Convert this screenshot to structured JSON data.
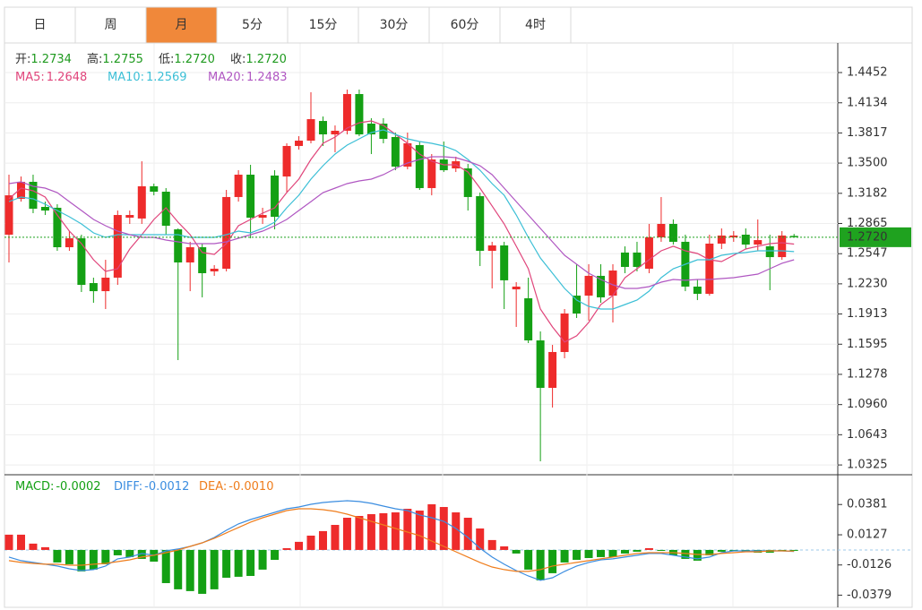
{
  "tabs": [
    "日",
    "周",
    "月",
    "5分",
    "15分",
    "30分",
    "60分",
    "4时"
  ],
  "active_tab": 2,
  "chart_data": [
    {
      "type": "candlestick",
      "info": [
        {
          "label": "开:",
          "value": "1.2734"
        },
        {
          "label": "高:",
          "value": "1.2755"
        },
        {
          "label": "低:",
          "value": "1.2720"
        },
        {
          "label": "收:",
          "value": "1.2720"
        }
      ],
      "up_color": "#ee2b2b",
      "down_color": "#14a014",
      "open": [
        1.2747,
        1.3124,
        1.3303,
        1.3039,
        1.303,
        1.2615,
        1.2709,
        1.2238,
        1.2153,
        1.2295,
        1.2926,
        1.2917,
        1.3256,
        1.3199,
        1.2803,
        1.2455,
        1.2615,
        1.2361,
        1.2389,
        1.3143,
        1.3378,
        1.2926,
        1.3369,
        1.3359,
        1.368,
        1.3736,
        1.3943,
        1.3802,
        1.384,
        1.4226,
        1.3915,
        1.3915,
        1.3774,
        1.3463,
        1.3689,
        1.3237,
        1.3538,
        1.3444,
        1.3444,
        1.3152,
        1.2577,
        1.2634,
        1.2172,
        1.2078,
        1.1635,
        1.1136,
        1.1513,
        1.2106,
        1.2106,
        1.2314,
        1.2106,
        1.2559,
        1.2559,
        1.2389,
        1.2719,
        1.286,
        1.2672,
        1.2201,
        1.2125,
        1.2653,
        1.2719,
        1.2747,
        1.2643,
        1.2625,
        1.2511,
        1.2734
      ],
      "high": [
        1.3378,
        1.3359,
        1.3378,
        1.3095,
        1.3067,
        1.2785,
        1.2747,
        1.2295,
        1.2483,
        1.3001,
        1.3001,
        1.3519,
        1.3284,
        1.3237,
        1.2813,
        1.2672,
        1.2653,
        1.2427,
        1.3218,
        1.3425,
        1.3482,
        1.303,
        1.3425,
        1.3708,
        1.3783,
        1.4245,
        1.399,
        1.3896,
        1.4273,
        1.4273,
        1.3972,
        1.3972,
        1.3821,
        1.3821,
        1.3727,
        1.3595,
        1.3727,
        1.3567,
        1.3491,
        1.319,
        1.2672,
        1.2672,
        1.2248,
        1.2295,
        1.173,
        1.1588,
        1.1965,
        1.2436,
        1.2436,
        1.2436,
        1.2436,
        1.2624,
        1.2672,
        1.286,
        1.3143,
        1.2907,
        1.2747,
        1.2276,
        1.2747,
        1.2813,
        1.2785,
        1.2813,
        1.2907,
        1.2747,
        1.2785,
        1.2755
      ],
      "low": [
        1.2455,
        1.3095,
        1.2973,
        1.2954,
        1.2577,
        1.2577,
        1.2144,
        1.2031,
        1.1965,
        1.2219,
        1.286,
        1.286,
        1.3161,
        1.2747,
        1.1428,
        1.2153,
        1.2088,
        1.2314,
        1.2361,
        1.3095,
        1.2709,
        1.286,
        1.2803,
        1.319,
        1.3642,
        1.3708,
        1.368,
        1.3614,
        1.3802,
        1.3783,
        1.3595,
        1.3708,
        1.3425,
        1.3435,
        1.3218,
        1.3161,
        1.3406,
        1.3406,
        1.3001,
        1.2417,
        1.2182,
        1.1965,
        1.1777,
        1.1607,
        1.0364,
        1.0929,
        1.1447,
        1.1871,
        1.1843,
        1.2031,
        1.1824,
        1.2342,
        1.2361,
        1.2342,
        1.2672,
        1.2643,
        1.2153,
        1.2059,
        1.2106,
        1.2596,
        1.2672,
        1.2596,
        1.2577,
        1.2163,
        1.2483,
        1.272
      ],
      "close": [
        1.3161,
        1.3303,
        1.302,
        1.3001,
        1.2615,
        1.2709,
        1.2219,
        1.2153,
        1.2295,
        1.2954,
        1.2954,
        1.3256,
        1.3199,
        1.2841,
        1.2455,
        1.2615,
        1.2342,
        1.2389,
        1.3143,
        1.3378,
        1.2926,
        1.2954,
        1.2935,
        1.368,
        1.3736,
        1.3962,
        1.3802,
        1.384,
        1.4226,
        1.3802,
        1.3802,
        1.3755,
        1.3463,
        1.3708,
        1.3237,
        1.3538,
        1.3425,
        1.3519,
        1.3143,
        1.2577,
        1.2634,
        1.2267,
        1.2201,
        1.1635,
        1.1136,
        1.1513,
        1.1918,
        1.1918,
        1.2314,
        1.2088,
        1.237,
        1.2408,
        1.2408,
        1.2719,
        1.286,
        1.2672,
        1.2201,
        1.2125,
        1.2653,
        1.2738,
        1.2738,
        1.2643,
        1.269,
        1.2511,
        1.2738,
        1.272
      ],
      "series": [
        {
          "name": "MA5:",
          "value_label": "1.2648",
          "color": "#e0457b",
          "values": [
            1.3124,
            1.3237,
            1.3209,
            1.3143,
            1.2954,
            1.2785,
            1.2653,
            1.2483,
            1.2361,
            1.2389,
            1.2596,
            1.2747,
            1.2907,
            1.303,
            1.2879,
            1.2747,
            1.2559,
            1.254,
            1.2653,
            1.2841,
            1.2907,
            1.2973,
            1.303,
            1.319,
            1.3331,
            1.3538,
            1.3708,
            1.3774,
            1.3868,
            1.3924,
            1.3943,
            1.3896,
            1.3802,
            1.3708,
            1.3595,
            1.3519,
            1.3482,
            1.3482,
            1.3406,
            1.3237,
            1.3049,
            1.286,
            1.2625,
            1.2389,
            1.1965,
            1.1777,
            1.1617,
            1.1683,
            1.1824,
            1.2012,
            1.2106,
            1.2295,
            1.2389,
            1.2483,
            1.2577,
            1.2625,
            1.2577,
            1.2549,
            1.2483,
            1.2464,
            1.253,
            1.2596,
            1.2625,
            1.2653,
            1.2662,
            1.2648
          ]
        },
        {
          "name": "MA10:",
          "value_label": "1.2569",
          "color": "#3cbfd6",
          "values": [
            1.3095,
            1.3143,
            1.3124,
            1.3067,
            1.3001,
            1.2935,
            1.286,
            1.2766,
            1.2719,
            1.2747,
            1.2747,
            1.2747,
            1.2747,
            1.2747,
            1.2747,
            1.2719,
            1.2719,
            1.2719,
            1.2747,
            1.2785,
            1.2766,
            1.2813,
            1.2879,
            1.303,
            1.3161,
            1.3331,
            1.3472,
            1.3595,
            1.3689,
            1.3755,
            1.3821,
            1.3849,
            1.3802,
            1.3755,
            1.3727,
            1.3708,
            1.368,
            1.3632,
            1.3538,
            1.3425,
            1.3284,
            1.3161,
            1.2954,
            1.2719,
            1.2502,
            1.2342,
            1.2182,
            1.2059,
            1.1993,
            1.1965,
            1.1965,
            1.2012,
            1.2059,
            1.2153,
            1.2295,
            1.2389,
            1.2436,
            1.2483,
            1.2483,
            1.253,
            1.2549,
            1.2559,
            1.2577,
            1.2577,
            1.2577,
            1.2569
          ]
        },
        {
          "name": "MA20:",
          "value_label": "1.2483",
          "color": "#b057c2",
          "values": [
            1.3284,
            1.3303,
            1.3256,
            1.3237,
            1.319,
            1.3095,
            1.3001,
            1.2907,
            1.2841,
            1.2785,
            1.2747,
            1.2719,
            1.2719,
            1.269,
            1.2672,
            1.2653,
            1.2653,
            1.2653,
            1.2672,
            1.2709,
            1.2747,
            1.2785,
            1.2841,
            1.2907,
            1.3001,
            1.3095,
            1.319,
            1.3237,
            1.3284,
            1.3312,
            1.3331,
            1.3378,
            1.3444,
            1.3501,
            1.3538,
            1.3567,
            1.3567,
            1.3557,
            1.3519,
            1.3472,
            1.3378,
            1.3237,
            1.3095,
            1.2954,
            1.2813,
            1.2672,
            1.253,
            1.2436,
            1.2342,
            1.2276,
            1.2219,
            1.2182,
            1.2182,
            1.2201,
            1.2248,
            1.2276,
            1.2267,
            1.2276,
            1.2276,
            1.2285,
            1.2295,
            1.2314,
            1.2332,
            1.2389,
            1.2446,
            1.2483
          ]
        }
      ],
      "ylim": [
        1.0241,
        1.4763
      ],
      "yticks": [
        1.4452,
        1.4134,
        1.3817,
        {
          "value": 1.35,
          "label": "1.3500"
        },
        1.3182,
        1.2865,
        1.2547,
        {
          "value": 1.223,
          "label": "1.2230"
        },
        1.1913,
        1.1595,
        1.1278,
        {
          "value": 1.096,
          "label": "1.0960"
        },
        1.0643,
        1.0325
      ],
      "grid": true,
      "last_price": {
        "value": 1.272,
        "label": "1.2720",
        "color": "#1fa21f"
      }
    },
    {
      "type": "macd",
      "up_color": "#ee2b2b",
      "down_color": "#14a014",
      "series": [
        {
          "name": "MACD:",
          "value_label": "-0.0002",
          "color": "#14a014",
          "values": [
            0.0128,
            0.0128,
            0.0053,
            0.0023,
            -0.0105,
            -0.012,
            -0.018,
            -0.0165,
            -0.012,
            -0.0045,
            -0.006,
            -0.0075,
            -0.0098,
            -0.0278,
            -0.033,
            -0.0345,
            -0.0368,
            -0.033,
            -0.0233,
            -0.0225,
            -0.0218,
            -0.0165,
            -0.0083,
            0.0015,
            0.0068,
            0.012,
            0.0158,
            0.021,
            0.027,
            0.0285,
            0.03,
            0.0308,
            0.0315,
            0.0345,
            0.033,
            0.0383,
            0.036,
            0.0315,
            0.027,
            0.018,
            0.0083,
            0.003,
            -0.003,
            -0.0165,
            -0.0255,
            -0.0195,
            -0.0105,
            -0.0083,
            -0.0068,
            -0.006,
            -0.006,
            -0.003,
            -0.0015,
            0.0015,
            -0.0008,
            -0.0045,
            -0.0075,
            -0.009,
            -0.0045,
            -0.0015,
            -0.0008,
            -0.0015,
            -0.0023,
            -0.0023,
            -0.0008,
            -0.0002
          ]
        },
        {
          "name": "DIFF:",
          "value_label": "-0.0012",
          "color": "#3b8de0",
          "values": [
            -0.006,
            -0.009,
            -0.0105,
            -0.012,
            -0.0135,
            -0.0158,
            -0.0173,
            -0.0165,
            -0.0135,
            -0.0075,
            -0.006,
            -0.003,
            -0.0045,
            -0.0008,
            0.0008,
            0.003,
            0.006,
            0.0105,
            0.0165,
            0.0218,
            0.0255,
            0.0285,
            0.0315,
            0.0345,
            0.036,
            0.0383,
            0.0398,
            0.0406,
            0.0413,
            0.0406,
            0.0391,
            0.0368,
            0.0345,
            0.033,
            0.0293,
            0.027,
            0.024,
            0.018,
            0.0105,
            0.0015,
            -0.006,
            -0.012,
            -0.0173,
            -0.0218,
            -0.0255,
            -0.0233,
            -0.018,
            -0.0135,
            -0.0105,
            -0.0083,
            -0.0075,
            -0.006,
            -0.0045,
            -0.003,
            -0.003,
            -0.0045,
            -0.006,
            -0.0075,
            -0.006,
            -0.0023,
            -0.0008,
            -0.0008,
            -0.0008,
            -0.0008,
            -0.0008,
            -0.0012
          ]
        },
        {
          "name": "DEA:",
          "value_label": "-0.0010",
          "color": "#ef7d1c",
          "values": [
            -0.009,
            -0.0105,
            -0.0113,
            -0.012,
            -0.012,
            -0.0128,
            -0.0128,
            -0.012,
            -0.0113,
            -0.0098,
            -0.0083,
            -0.006,
            -0.0045,
            -0.0023,
            0,
            0.003,
            0.006,
            0.0098,
            0.0143,
            0.0188,
            0.0233,
            0.027,
            0.03,
            0.033,
            0.0345,
            0.0345,
            0.0338,
            0.0323,
            0.03,
            0.027,
            0.024,
            0.021,
            0.018,
            0.015,
            0.012,
            0.0075,
            0.003,
            -0.0015,
            -0.006,
            -0.0105,
            -0.0143,
            -0.0165,
            -0.018,
            -0.018,
            -0.0165,
            -0.0135,
            -0.012,
            -0.0105,
            -0.009,
            -0.0075,
            -0.006,
            -0.0045,
            -0.003,
            -0.0023,
            -0.0023,
            -0.0023,
            -0.003,
            -0.0038,
            -0.0038,
            -0.003,
            -0.0023,
            -0.0015,
            -0.0015,
            -0.0008,
            -0.0008,
            -0.001
          ]
        }
      ],
      "ylim": [
        -0.0481,
        0.0608
      ],
      "yticks": [
        0.0381,
        0.0127,
        -0.0126,
        -0.0379
      ]
    }
  ]
}
